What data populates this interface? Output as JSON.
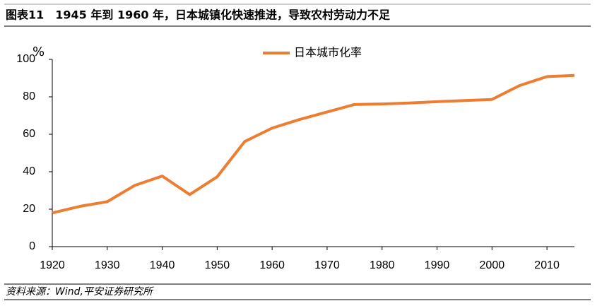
{
  "chart_data": {
    "type": "line",
    "title": "图表11　1945 年到 1960 年，日本城镇化快速推进，导致农村劳动力不足",
    "y_label": "%",
    "source": "资料来源：Wind,平安证券研究所",
    "x": [
      1920,
      1925,
      1930,
      1935,
      1940,
      1945,
      1950,
      1955,
      1960,
      1965,
      1970,
      1975,
      1980,
      1985,
      1990,
      1995,
      2000,
      2005,
      2010,
      2015
    ],
    "series": [
      {
        "name": "日本城市化率",
        "color": "#ed7d31",
        "values": [
          18.0,
          21.5,
          24.0,
          32.7,
          37.7,
          27.8,
          37.3,
          56.1,
          63.3,
          67.9,
          71.9,
          75.9,
          76.2,
          76.7,
          77.4,
          78.0,
          78.6,
          86.0,
          90.8,
          91.4
        ]
      }
    ],
    "xlim": [
      1920,
      2015
    ],
    "xticks": [
      1920,
      1930,
      1940,
      1950,
      1960,
      1970,
      1980,
      1990,
      2000,
      2010
    ],
    "ylim": [
      0,
      100
    ],
    "yticks": [
      0,
      20,
      40,
      60,
      80,
      100
    ],
    "grid": false,
    "legend": "top"
  }
}
